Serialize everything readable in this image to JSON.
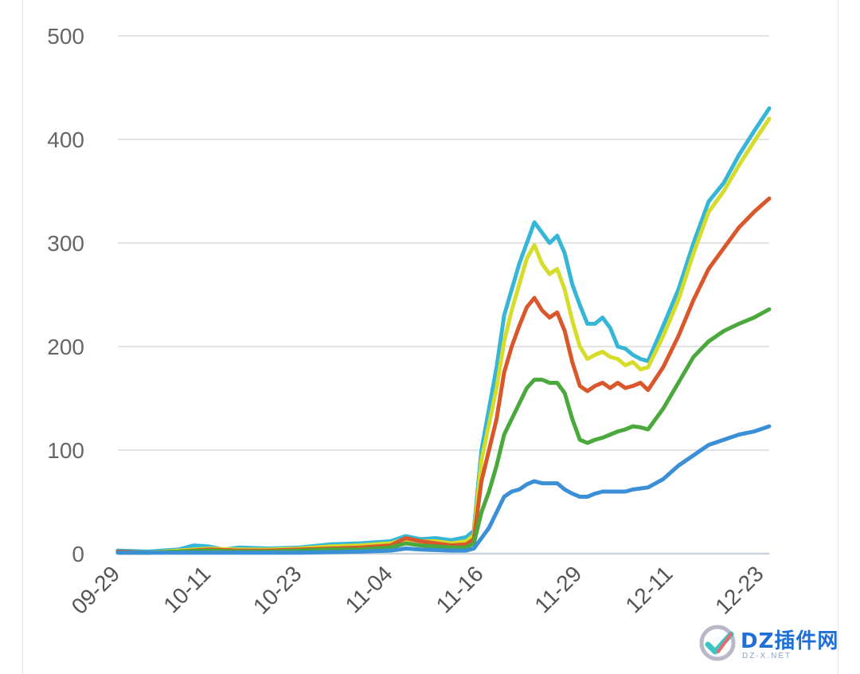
{
  "chart_data": {
    "type": "line",
    "title": "",
    "xlabel": "",
    "ylabel": "",
    "ylim": [
      0,
      500
    ],
    "yticks": [
      0,
      100,
      200,
      300,
      400,
      500
    ],
    "xtick_labels": [
      "09-29",
      "10-11",
      "10-23",
      "11-04",
      "11-16",
      "11-29",
      "12-11",
      "12-23"
    ],
    "x_days": 86,
    "x_tick_days": [
      0,
      12,
      24,
      36,
      48,
      61,
      73,
      85
    ],
    "grid": true,
    "series": [
      {
        "name": "cyan",
        "color": "#35b6d6",
        "points": [
          [
            0,
            3
          ],
          [
            4,
            2
          ],
          [
            8,
            4
          ],
          [
            10,
            8
          ],
          [
            12,
            7
          ],
          [
            14,
            4
          ],
          [
            16,
            6
          ],
          [
            20,
            5
          ],
          [
            24,
            6
          ],
          [
            28,
            9
          ],
          [
            32,
            10
          ],
          [
            36,
            12
          ],
          [
            38,
            17
          ],
          [
            40,
            14
          ],
          [
            42,
            15
          ],
          [
            44,
            13
          ],
          [
            46,
            16
          ],
          [
            47,
            22
          ],
          [
            48,
            100
          ],
          [
            49,
            140
          ],
          [
            50,
            180
          ],
          [
            51,
            230
          ],
          [
            52,
            255
          ],
          [
            53,
            280
          ],
          [
            54,
            300
          ],
          [
            55,
            320
          ],
          [
            56,
            310
          ],
          [
            57,
            300
          ],
          [
            58,
            307
          ],
          [
            59,
            290
          ],
          [
            60,
            260
          ],
          [
            61,
            240
          ],
          [
            62,
            222
          ],
          [
            63,
            222
          ],
          [
            64,
            228
          ],
          [
            65,
            218
          ],
          [
            66,
            200
          ],
          [
            67,
            198
          ],
          [
            68,
            192
          ],
          [
            69,
            188
          ],
          [
            70,
            186
          ],
          [
            72,
            220
          ],
          [
            74,
            255
          ],
          [
            76,
            300
          ],
          [
            78,
            340
          ],
          [
            80,
            358
          ],
          [
            82,
            385
          ],
          [
            84,
            408
          ],
          [
            86,
            430
          ]
        ]
      },
      {
        "name": "yellow",
        "color": "#d6dc2a",
        "points": [
          [
            0,
            2
          ],
          [
            4,
            1
          ],
          [
            8,
            3
          ],
          [
            12,
            5
          ],
          [
            16,
            4
          ],
          [
            20,
            4
          ],
          [
            24,
            5
          ],
          [
            28,
            7
          ],
          [
            32,
            8
          ],
          [
            36,
            10
          ],
          [
            38,
            14
          ],
          [
            40,
            12
          ],
          [
            42,
            12
          ],
          [
            44,
            10
          ],
          [
            46,
            12
          ],
          [
            47,
            18
          ],
          [
            48,
            90
          ],
          [
            49,
            125
          ],
          [
            50,
            160
          ],
          [
            51,
            205
          ],
          [
            52,
            235
          ],
          [
            53,
            260
          ],
          [
            54,
            285
          ],
          [
            55,
            298
          ],
          [
            56,
            280
          ],
          [
            57,
            270
          ],
          [
            58,
            275
          ],
          [
            59,
            255
          ],
          [
            60,
            225
          ],
          [
            61,
            200
          ],
          [
            62,
            188
          ],
          [
            63,
            192
          ],
          [
            64,
            195
          ],
          [
            65,
            190
          ],
          [
            66,
            188
          ],
          [
            67,
            182
          ],
          [
            68,
            185
          ],
          [
            69,
            178
          ],
          [
            70,
            180
          ],
          [
            72,
            210
          ],
          [
            74,
            245
          ],
          [
            76,
            290
          ],
          [
            78,
            330
          ],
          [
            80,
            350
          ],
          [
            82,
            375
          ],
          [
            84,
            398
          ],
          [
            86,
            420
          ]
        ]
      },
      {
        "name": "orange",
        "color": "#d9572a",
        "points": [
          [
            0,
            2
          ],
          [
            4,
            1
          ],
          [
            8,
            2
          ],
          [
            12,
            4
          ],
          [
            16,
            3
          ],
          [
            20,
            3
          ],
          [
            24,
            4
          ],
          [
            28,
            5
          ],
          [
            32,
            6
          ],
          [
            36,
            8
          ],
          [
            38,
            15
          ],
          [
            40,
            12
          ],
          [
            42,
            10
          ],
          [
            44,
            8
          ],
          [
            46,
            9
          ],
          [
            47,
            14
          ],
          [
            48,
            70
          ],
          [
            49,
            100
          ],
          [
            50,
            130
          ],
          [
            51,
            175
          ],
          [
            52,
            200
          ],
          [
            53,
            220
          ],
          [
            54,
            238
          ],
          [
            55,
            247
          ],
          [
            56,
            235
          ],
          [
            57,
            228
          ],
          [
            58,
            233
          ],
          [
            59,
            215
          ],
          [
            60,
            185
          ],
          [
            61,
            162
          ],
          [
            62,
            157
          ],
          [
            63,
            162
          ],
          [
            64,
            165
          ],
          [
            65,
            160
          ],
          [
            66,
            165
          ],
          [
            67,
            160
          ],
          [
            68,
            162
          ],
          [
            69,
            165
          ],
          [
            70,
            158
          ],
          [
            72,
            180
          ],
          [
            74,
            210
          ],
          [
            76,
            245
          ],
          [
            78,
            275
          ],
          [
            80,
            295
          ],
          [
            82,
            315
          ],
          [
            84,
            330
          ],
          [
            86,
            343
          ]
        ]
      },
      {
        "name": "green",
        "color": "#4aa83c",
        "points": [
          [
            0,
            1
          ],
          [
            4,
            1
          ],
          [
            8,
            2
          ],
          [
            12,
            3
          ],
          [
            16,
            2
          ],
          [
            20,
            2
          ],
          [
            24,
            3
          ],
          [
            28,
            4
          ],
          [
            32,
            4
          ],
          [
            36,
            6
          ],
          [
            38,
            10
          ],
          [
            40,
            8
          ],
          [
            42,
            7
          ],
          [
            44,
            6
          ],
          [
            46,
            6
          ],
          [
            47,
            10
          ],
          [
            48,
            40
          ],
          [
            49,
            60
          ],
          [
            50,
            85
          ],
          [
            51,
            115
          ],
          [
            52,
            130
          ],
          [
            53,
            145
          ],
          [
            54,
            160
          ],
          [
            55,
            168
          ],
          [
            56,
            168
          ],
          [
            57,
            165
          ],
          [
            58,
            165
          ],
          [
            59,
            155
          ],
          [
            60,
            130
          ],
          [
            61,
            110
          ],
          [
            62,
            107
          ],
          [
            63,
            110
          ],
          [
            64,
            112
          ],
          [
            65,
            115
          ],
          [
            66,
            118
          ],
          [
            67,
            120
          ],
          [
            68,
            123
          ],
          [
            69,
            122
          ],
          [
            70,
            120
          ],
          [
            72,
            140
          ],
          [
            74,
            165
          ],
          [
            76,
            190
          ],
          [
            78,
            205
          ],
          [
            80,
            215
          ],
          [
            82,
            222
          ],
          [
            84,
            228
          ],
          [
            86,
            236
          ]
        ]
      },
      {
        "name": "blue",
        "color": "#3a8fd6",
        "points": [
          [
            0,
            1
          ],
          [
            8,
            1
          ],
          [
            16,
            1
          ],
          [
            24,
            1
          ],
          [
            32,
            2
          ],
          [
            36,
            3
          ],
          [
            38,
            5
          ],
          [
            40,
            4
          ],
          [
            44,
            3
          ],
          [
            46,
            3
          ],
          [
            47,
            5
          ],
          [
            48,
            15
          ],
          [
            49,
            25
          ],
          [
            50,
            40
          ],
          [
            51,
            55
          ],
          [
            52,
            60
          ],
          [
            53,
            62
          ],
          [
            54,
            67
          ],
          [
            55,
            70
          ],
          [
            56,
            68
          ],
          [
            57,
            68
          ],
          [
            58,
            68
          ],
          [
            59,
            62
          ],
          [
            60,
            58
          ],
          [
            61,
            55
          ],
          [
            62,
            55
          ],
          [
            63,
            58
          ],
          [
            64,
            60
          ],
          [
            65,
            60
          ],
          [
            66,
            60
          ],
          [
            67,
            60
          ],
          [
            68,
            62
          ],
          [
            69,
            63
          ],
          [
            70,
            64
          ],
          [
            72,
            72
          ],
          [
            74,
            85
          ],
          [
            76,
            95
          ],
          [
            78,
            105
          ],
          [
            80,
            110
          ],
          [
            82,
            115
          ],
          [
            84,
            118
          ],
          [
            86,
            123
          ]
        ]
      }
    ]
  },
  "watermark": {
    "title": "DZ插件网",
    "subtitle": "DZ-X.NET"
  }
}
